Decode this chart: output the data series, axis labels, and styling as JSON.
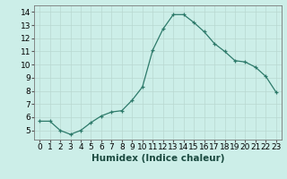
{
  "x": [
    0,
    1,
    2,
    3,
    4,
    5,
    6,
    7,
    8,
    9,
    10,
    11,
    12,
    13,
    14,
    15,
    16,
    17,
    18,
    19,
    20,
    21,
    22,
    23
  ],
  "y": [
    5.7,
    5.7,
    5.0,
    4.7,
    5.0,
    5.6,
    6.1,
    6.4,
    6.5,
    7.3,
    8.3,
    11.1,
    12.7,
    13.8,
    13.8,
    13.2,
    12.5,
    11.6,
    11.0,
    10.3,
    10.2,
    9.8,
    9.1,
    7.9
  ],
  "line_color": "#2d7a6a",
  "marker": "+",
  "bg_color": "#cceee8",
  "grid_color": "#b8d8d0",
  "xlabel": "Humidex (Indice chaleur)",
  "xlabel_fontsize": 7.5,
  "tick_fontsize": 6.5,
  "xlim": [
    -0.5,
    23.5
  ],
  "ylim": [
    4.3,
    14.5
  ],
  "yticks": [
    5,
    6,
    7,
    8,
    9,
    10,
    11,
    12,
    13,
    14
  ],
  "xtick_labels": [
    "0",
    "1",
    "2",
    "3",
    "4",
    "5",
    "6",
    "7",
    "8",
    "9",
    "10",
    "11",
    "12",
    "13",
    "14",
    "15",
    "16",
    "17",
    "18",
    "19",
    "20",
    "21",
    "22",
    "23"
  ]
}
